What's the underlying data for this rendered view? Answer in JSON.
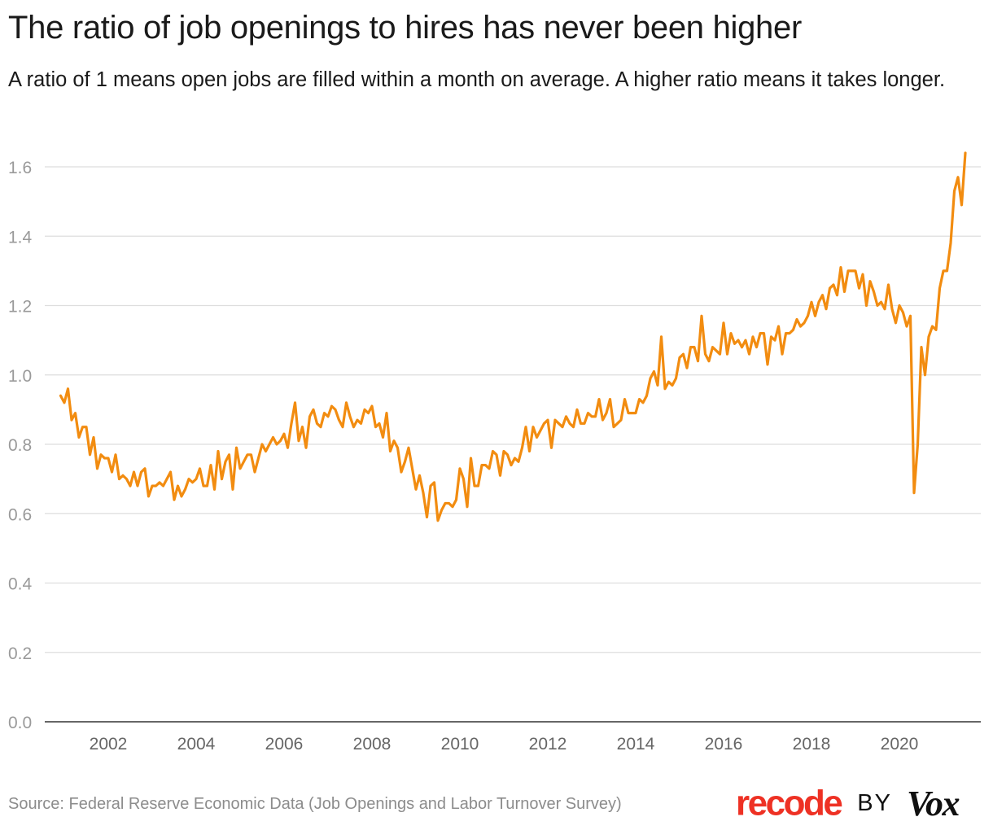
{
  "title": "The ratio of job openings to hires has never been higher",
  "subtitle": "A ratio of 1 means open jobs are filled within a month on average. A higher ratio means it takes longer.",
  "source": "Source: Federal Reserve Economic Data (Job Openings and Labor Turnover Survey)",
  "brand": {
    "recode": "recode",
    "by": "BY",
    "vox": "Vox",
    "recode_color": "#ee3124"
  },
  "chart_data": {
    "type": "line",
    "title": "The ratio of job openings to hires has never been higher",
    "subtitle": "A ratio of 1 means open jobs are filled within a month on average. A higher ratio means it takes longer.",
    "xlabel": "",
    "ylabel": "",
    "ylim": [
      0,
      1.6
    ],
    "yticks": [
      0.0,
      0.2,
      0.4,
      0.6,
      0.8,
      1.0,
      1.2,
      1.4,
      1.6
    ],
    "ytick_labels": [
      "0.0",
      "0.2",
      "0.4",
      "0.6",
      "0.8",
      "1.0",
      "1.2",
      "1.4",
      "1.6"
    ],
    "xticks": [
      2002,
      2004,
      2006,
      2008,
      2010,
      2012,
      2014,
      2016,
      2018,
      2020
    ],
    "xtick_labels": [
      "2002",
      "2004",
      "2006",
      "2008",
      "2010",
      "2012",
      "2014",
      "2016",
      "2018",
      "2020"
    ],
    "grid": true,
    "legend": "none",
    "line_color": "#f28c10",
    "series": [
      {
        "x_start": "2000-12",
        "frequency": "monthly",
        "values": [
          0.94,
          0.92,
          0.96,
          0.87,
          0.89,
          0.82,
          0.85,
          0.85,
          0.77,
          0.82,
          0.73,
          0.77,
          0.76,
          0.76,
          0.72,
          0.77,
          0.7,
          0.71,
          0.7,
          0.68,
          0.72,
          0.68,
          0.72,
          0.73,
          0.65,
          0.68,
          0.68,
          0.69,
          0.68,
          0.7,
          0.72,
          0.64,
          0.68,
          0.65,
          0.67,
          0.7,
          0.69,
          0.7,
          0.73,
          0.68,
          0.68,
          0.74,
          0.67,
          0.78,
          0.7,
          0.75,
          0.77,
          0.67,
          0.79,
          0.73,
          0.75,
          0.77,
          0.77,
          0.72,
          0.76,
          0.8,
          0.78,
          0.8,
          0.82,
          0.8,
          0.81,
          0.83,
          0.79,
          0.86,
          0.92,
          0.81,
          0.85,
          0.79,
          0.88,
          0.9,
          0.86,
          0.85,
          0.89,
          0.88,
          0.91,
          0.9,
          0.87,
          0.85,
          0.92,
          0.88,
          0.85,
          0.87,
          0.86,
          0.9,
          0.89,
          0.91,
          0.85,
          0.86,
          0.82,
          0.89,
          0.78,
          0.81,
          0.79,
          0.72,
          0.75,
          0.79,
          0.73,
          0.67,
          0.71,
          0.66,
          0.59,
          0.68,
          0.69,
          0.58,
          0.61,
          0.63,
          0.63,
          0.62,
          0.64,
          0.73,
          0.7,
          0.62,
          0.76,
          0.68,
          0.68,
          0.74,
          0.74,
          0.73,
          0.78,
          0.77,
          0.71,
          0.78,
          0.77,
          0.74,
          0.76,
          0.75,
          0.79,
          0.85,
          0.78,
          0.85,
          0.82,
          0.84,
          0.86,
          0.87,
          0.79,
          0.87,
          0.86,
          0.85,
          0.88,
          0.86,
          0.85,
          0.9,
          0.86,
          0.86,
          0.89,
          0.88,
          0.88,
          0.93,
          0.87,
          0.89,
          0.93,
          0.85,
          0.86,
          0.87,
          0.93,
          0.89,
          0.89,
          0.89,
          0.93,
          0.92,
          0.94,
          0.99,
          1.01,
          0.97,
          1.11,
          0.96,
          0.98,
          0.97,
          0.99,
          1.05,
          1.06,
          1.02,
          1.08,
          1.08,
          1.04,
          1.17,
          1.06,
          1.04,
          1.08,
          1.07,
          1.06,
          1.15,
          1.06,
          1.12,
          1.09,
          1.1,
          1.08,
          1.1,
          1.06,
          1.11,
          1.08,
          1.12,
          1.12,
          1.03,
          1.11,
          1.1,
          1.14,
          1.06,
          1.12,
          1.12,
          1.13,
          1.16,
          1.14,
          1.15,
          1.17,
          1.21,
          1.17,
          1.21,
          1.23,
          1.19,
          1.25,
          1.26,
          1.23,
          1.31,
          1.24,
          1.3,
          1.3,
          1.3,
          1.25,
          1.29,
          1.2,
          1.27,
          1.24,
          1.2,
          1.21,
          1.19,
          1.26,
          1.19,
          1.15,
          1.2,
          1.18,
          1.14,
          1.17,
          0.66,
          0.8,
          1.08,
          1.0,
          1.11,
          1.14,
          1.13,
          1.25,
          1.3,
          1.3,
          1.38,
          1.53,
          1.57,
          1.49,
          1.64
        ]
      }
    ]
  }
}
